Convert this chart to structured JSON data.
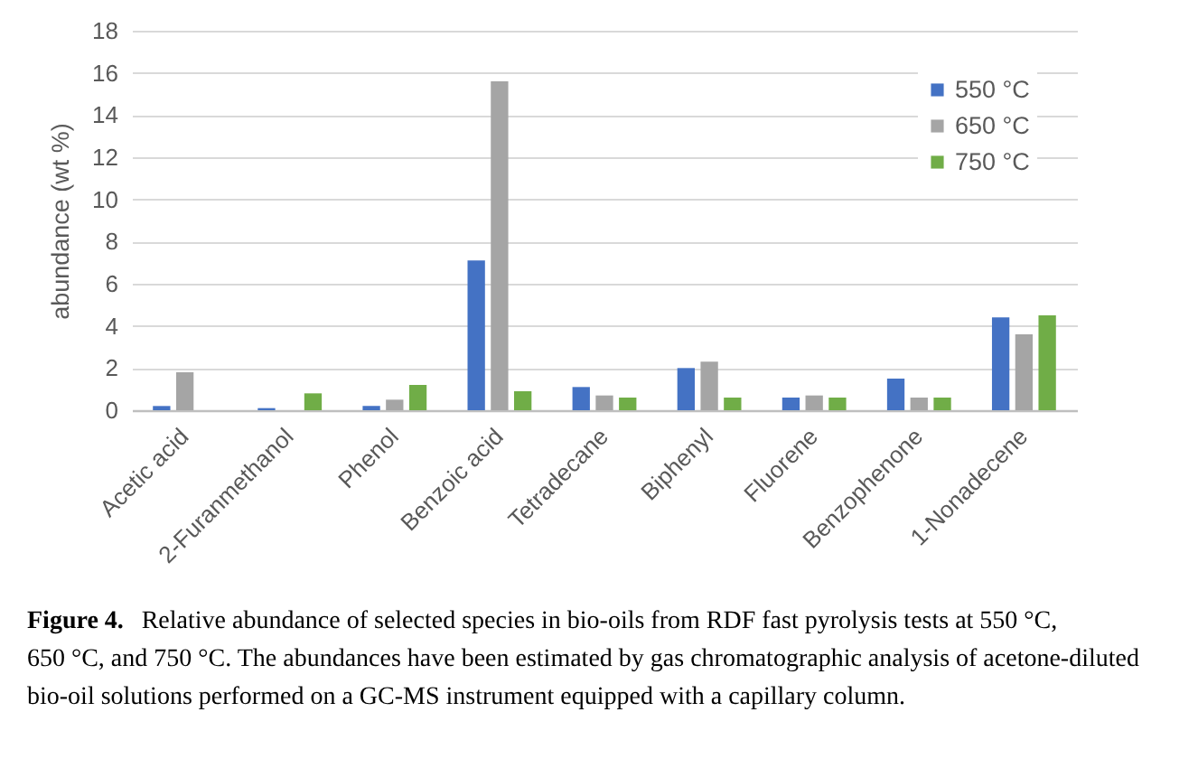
{
  "chart_data": {
    "type": "bar",
    "ylabel": "abundance (wt %)",
    "categories": [
      "Acetic acid",
      "2-Furanmethanol",
      "Phenol",
      "Benzoic acid",
      "Tetradecane",
      "Biphenyl",
      "Fluorene",
      "Benzophenone",
      "1-Nonadecene"
    ],
    "series": [
      {
        "name": "550 °C",
        "color": "#4472c4",
        "values": [
          0.2,
          0.1,
          0.2,
          7.1,
          1.1,
          2.0,
          0.6,
          1.5,
          4.4
        ]
      },
      {
        "name": "650 °C",
        "color": "#a5a5a5",
        "values": [
          1.8,
          null,
          0.5,
          15.6,
          0.7,
          2.3,
          0.7,
          0.6,
          3.6
        ]
      },
      {
        "name": "750 °C",
        "color": "#70ad47",
        "values": [
          null,
          0.8,
          1.2,
          0.9,
          0.6,
          0.6,
          0.6,
          0.6,
          4.5
        ]
      }
    ],
    "ylim": [
      0,
      18
    ],
    "yticks": [
      0,
      2,
      4,
      6,
      8,
      10,
      12,
      14,
      16,
      18
    ],
    "grid": "y",
    "legend": "top right",
    "annotations": [
      "Figure 4. Relative abundance of selected species in bio-oils from RDF fast pyrolysis tests at 550 °C, 650 °C, and 750 °C. The abundances have been estimated by gas chromatographic analysis of acetone-diluted bio-oil solutions performed on a GC-MS instrument equipped with a capillary column."
    ]
  }
}
